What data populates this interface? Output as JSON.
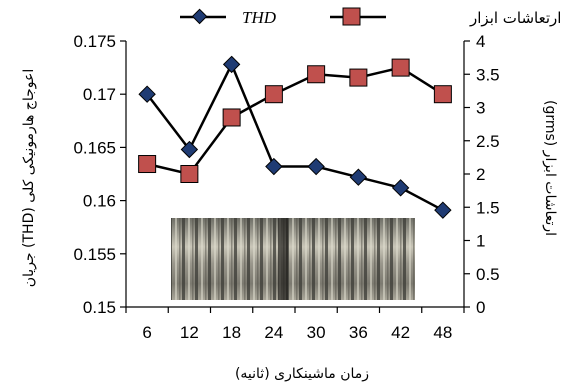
{
  "chart_data": {
    "type": "line",
    "xlabel": "زمان ماشینکاری (ثانیه)",
    "ylabel_left": "اعوجاج هارمونیکی کلی (THD) جریان",
    "ylabel_right": "ارتعاشات ابزار (grms)",
    "x": [
      6,
      12,
      18,
      24,
      30,
      36,
      42,
      48
    ],
    "x_ticks": [
      "6",
      "12",
      "18",
      "24",
      "30",
      "36",
      "42",
      "48"
    ],
    "ylim_left": [
      0.15,
      0.175
    ],
    "ylim_right": [
      0,
      4
    ],
    "yticks_left": [
      "0.15",
      "0.155",
      "0.16",
      "0.165",
      "0.17",
      "0.175"
    ],
    "yticks_right": [
      "0",
      "0.5",
      "1",
      "1.5",
      "2",
      "2.5",
      "3",
      "3.5",
      "4"
    ],
    "grid": false,
    "legend_position": "top",
    "series": [
      {
        "name": "THD",
        "axis": "left",
        "marker": "diamond",
        "color": "#1f3b73",
        "values": [
          0.17,
          0.1648,
          0.1728,
          0.1632,
          0.1632,
          0.1622,
          0.1612,
          0.1591
        ]
      },
      {
        "name": "ارتعاشات ابزار",
        "axis": "right",
        "marker": "square",
        "color": "#c0504d",
        "values": [
          2.15,
          2.0,
          2.85,
          3.2,
          3.5,
          3.45,
          3.6,
          3.2
        ]
      }
    ]
  }
}
